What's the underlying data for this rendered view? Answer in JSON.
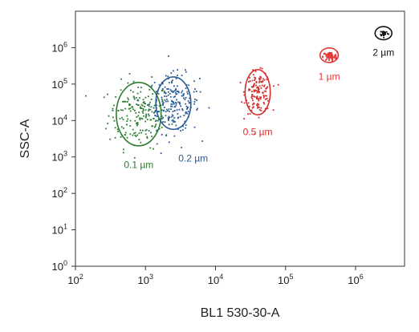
{
  "chart_data": {
    "type": "scatter",
    "title": "",
    "xlabel": "BL1 530-30-A",
    "ylabel": "SSC-A",
    "x_scale": "log",
    "y_scale": "log",
    "xlim": [
      100,
      5000000
    ],
    "ylim": [
      1,
      10000000
    ],
    "x_ticks": [
      {
        "value": 100,
        "base": "10",
        "exp": "2"
      },
      {
        "value": 1000,
        "base": "10",
        "exp": "3"
      },
      {
        "value": 10000,
        "base": "10",
        "exp": "4"
      },
      {
        "value": 100000,
        "base": "10",
        "exp": "5"
      },
      {
        "value": 1000000,
        "base": "10",
        "exp": "6"
      }
    ],
    "y_ticks": [
      {
        "value": 1,
        "base": "10",
        "exp": "0"
      },
      {
        "value": 10,
        "base": "10",
        "exp": "1"
      },
      {
        "value": 100,
        "base": "10",
        "exp": "2"
      },
      {
        "value": 1000,
        "base": "10",
        "exp": "3"
      },
      {
        "value": 10000,
        "base": "10",
        "exp": "4"
      },
      {
        "value": 100000,
        "base": "10",
        "exp": "5"
      },
      {
        "value": 1000000,
        "base": "10",
        "exp": "6"
      }
    ],
    "grid": false,
    "series": [
      {
        "name": "0.1 µm",
        "color": "#2e7d32",
        "center": [
          800,
          15000
        ],
        "spread_log": [
          0.22,
          0.45
        ],
        "n": 200
      },
      {
        "name": "0.2 µm",
        "color": "#2a5d96",
        "center": [
          2500,
          30000
        ],
        "spread_log": [
          0.18,
          0.4
        ],
        "n": 200
      },
      {
        "name": "0.5 µm",
        "color": "#d32f2f",
        "center": [
          40000,
          60000
        ],
        "spread_log": [
          0.09,
          0.28
        ],
        "n": 150
      },
      {
        "name": "1 µm",
        "color": "#e53935",
        "center": [
          420000,
          600000
        ],
        "spread_log": [
          0.05,
          0.06
        ],
        "n": 80
      },
      {
        "name": "2 µm",
        "color": "#111111",
        "center": [
          2500000,
          2600000
        ],
        "spread_log": [
          0.03,
          0.04
        ],
        "n": 30
      }
    ],
    "gates": [
      {
        "label": "0.1 µm",
        "color": "#2e7d32",
        "center": [
          800,
          15000
        ],
        "half_width_log": 0.32,
        "half_height_log": 0.87,
        "label_at": [
          800,
          500
        ]
      },
      {
        "label": "0.2 µm",
        "color": "#2a5d96",
        "center": [
          2500,
          30000
        ],
        "half_width_log": 0.25,
        "half_height_log": 0.72,
        "label_at": [
          4800,
          750
        ]
      },
      {
        "label": "0.5 µm",
        "color": "#d32f2f",
        "center": [
          40000,
          60000
        ],
        "half_width_log": 0.18,
        "half_height_log": 0.62,
        "label_at": [
          40000,
          4000
        ]
      },
      {
        "label": "1 µm",
        "color": "#e53935",
        "center": [
          420000,
          620000
        ],
        "half_width_log": 0.13,
        "half_height_log": 0.2,
        "label_at": [
          420000,
          130000
        ]
      },
      {
        "label": "2 µm",
        "color": "#111111",
        "center": [
          2500000,
          2500000
        ],
        "half_width_log": 0.12,
        "half_height_log": 0.18,
        "label_at": [
          2500000,
          600000
        ]
      }
    ]
  }
}
